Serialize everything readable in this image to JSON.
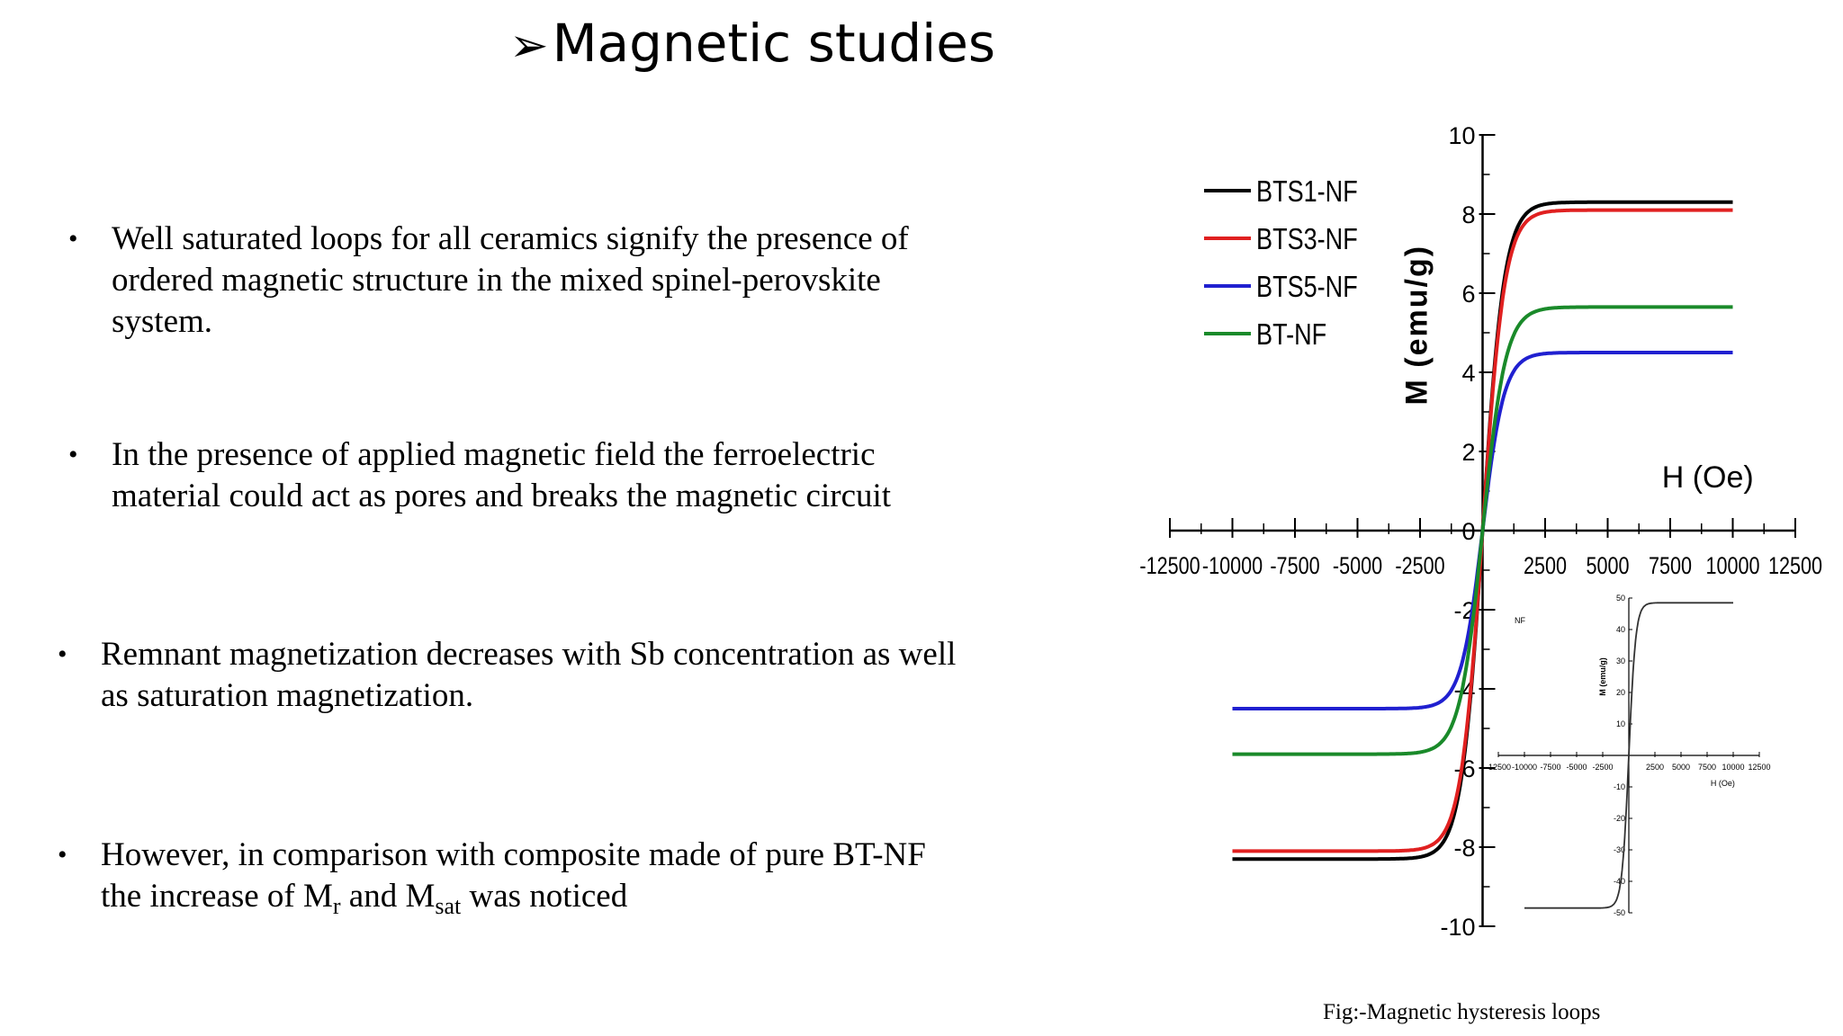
{
  "title": "Magnetic studies",
  "title_marker": "➢",
  "bullet_marker": "•",
  "bullets": [
    "Well saturated loops for all ceramics signify the presence of ordered magnetic structure in the mixed spinel-perovskite system.",
    "In the presence of applied magnetic field the ferroelectric material could act as pores and breaks the magnetic circuit",
    "Remnant magnetization decreases with Sb concentration as well as saturation magnetization."
  ],
  "bullet4": {
    "part1": "However, in comparison with composite made of pure BT-NF the increase of M",
    "sub1": "r",
    "part2": " and M",
    "sub2": "sat",
    "part3": " was noticed"
  },
  "caption": "Fig:-Magnetic hysteresis loops",
  "chart_data": [
    {
      "type": "line",
      "xlabel": "H (Oe)",
      "ylabel": "M (emu/g)",
      "xlim": [
        -12500,
        12500
      ],
      "ylim": [
        -10,
        10
      ],
      "x_ticks": [
        -12500,
        -10000,
        -7500,
        -5000,
        -2500,
        0,
        2500,
        5000,
        7500,
        10000,
        12500
      ],
      "y_ticks": [
        -10,
        -8,
        -6,
        -4,
        -2,
        0,
        2,
        4,
        6,
        8,
        10
      ],
      "legend_position": "top-left",
      "series": [
        {
          "name": "BTS1-NF",
          "color": "#000000",
          "x": [
            -10000,
            -5000,
            -2000,
            -1000,
            -500,
            0,
            500,
            1000,
            2000,
            5000,
            10000
          ],
          "y": [
            -8.3,
            -8.1,
            -7.6,
            -6.8,
            -5.0,
            0,
            5.0,
            6.8,
            7.6,
            8.1,
            8.3
          ]
        },
        {
          "name": "BTS3-NF",
          "color": "#e02020",
          "x": [
            -10000,
            -5000,
            -2000,
            -1000,
            -500,
            0,
            500,
            1000,
            2000,
            5000,
            10000
          ],
          "y": [
            -8.1,
            -7.9,
            -7.4,
            -6.6,
            -4.9,
            0,
            4.9,
            6.6,
            7.4,
            7.9,
            8.1
          ]
        },
        {
          "name": "BTS5-NF",
          "color": "#2020d0",
          "x": [
            -10000,
            -5000,
            -2000,
            -1000,
            -500,
            0,
            500,
            1000,
            2000,
            5000,
            10000
          ],
          "y": [
            -4.5,
            -4.35,
            -4.1,
            -3.7,
            -2.9,
            0,
            2.9,
            3.7,
            4.1,
            4.35,
            4.5
          ]
        },
        {
          "name": "BT-NF",
          "color": "#1a8a2a",
          "x": [
            -10000,
            -5000,
            -2000,
            -1000,
            -500,
            0,
            500,
            1000,
            2000,
            5000,
            10000
          ],
          "y": [
            -5.65,
            -5.5,
            -5.1,
            -4.5,
            -3.5,
            0,
            3.5,
            4.5,
            5.1,
            5.5,
            5.65
          ]
        }
      ]
    },
    {
      "type": "line",
      "title": "NF",
      "xlabel": "H (Oe)",
      "ylabel": "M (emu/g)",
      "xlim": [
        -12500,
        12500
      ],
      "ylim": [
        -50,
        50
      ],
      "x_ticks": [
        -12500,
        -10000,
        -7500,
        -5000,
        -2500,
        0,
        2500,
        5000,
        7500,
        10000,
        12500
      ],
      "y_ticks": [
        -50,
        -40,
        -30,
        -20,
        -10,
        0,
        10,
        20,
        30,
        40,
        50
      ],
      "series": [
        {
          "color": "#333333",
          "x": [
            -10000,
            -5000,
            -2000,
            -1000,
            -500,
            0,
            500,
            1000,
            2000,
            5000,
            10000
          ],
          "y": [
            -48.5,
            -47.5,
            -46,
            -44,
            -38,
            0,
            38,
            44,
            46,
            47.5,
            48.5
          ]
        }
      ]
    }
  ]
}
